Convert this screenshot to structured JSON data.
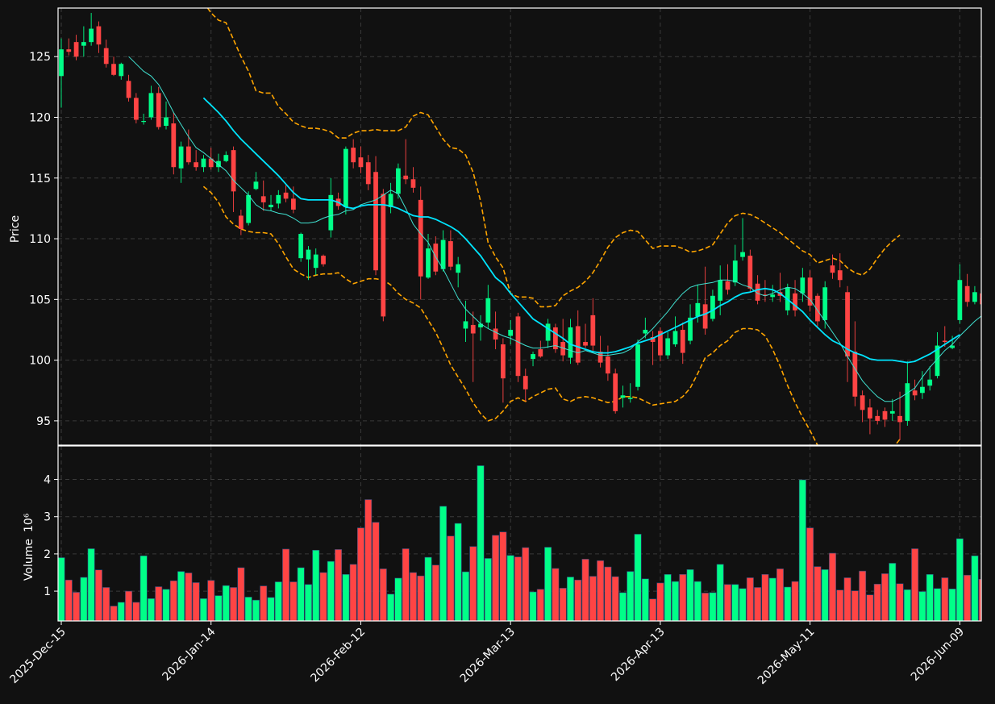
{
  "chart_data": {
    "type": "candlestick",
    "colors": {
      "background": "#111111",
      "up": "#00ff88",
      "down": "#ff4444",
      "ma_fast": "#40e0d0",
      "ma_slow": "#00e5ff",
      "bands": "#ffa500",
      "grid": "#3a3a3a",
      "text": "#ffffff"
    },
    "price_axis": {
      "label": "Price",
      "ylim": [
        93,
        129
      ],
      "ticks": [
        95,
        100,
        105,
        110,
        115,
        120,
        125
      ]
    },
    "volume_axis": {
      "label": "Volume",
      "exponent_label": "10⁶",
      "ylim": [
        0.2,
        4.9
      ],
      "ticks": [
        1,
        2,
        3,
        4
      ]
    },
    "x_ticks": [
      {
        "index": 0,
        "label": "2025-Dec-15"
      },
      {
        "index": 20,
        "label": "2026-Jan-14"
      },
      {
        "index": 40,
        "label": "2026-Feb-12"
      },
      {
        "index": 60,
        "label": "2026-Mar-13"
      },
      {
        "index": 80,
        "label": "2026-Apr-13"
      },
      {
        "index": 100,
        "label": "2026-May-11"
      },
      {
        "index": 120,
        "label": "2026-Jun-09"
      }
    ],
    "grid": true,
    "n_bars": 124,
    "close": [
      125.6,
      125.4,
      125.0,
      126.2,
      127.3,
      126.0,
      124.4,
      123.5,
      124.4,
      121.6,
      119.8,
      119.7,
      122.0,
      119.2,
      120.0,
      115.9,
      117.6,
      116.3,
      115.9,
      116.6,
      115.9,
      116.4,
      116.9,
      113.9,
      110.8,
      113.6,
      114.7,
      113.0,
      112.8,
      113.6,
      113.3,
      112.4,
      110.4,
      109.1,
      108.7,
      107.9,
      113.6,
      112.7,
      117.4,
      116.3,
      115.9,
      114.5,
      107.4,
      103.6,
      113.7,
      115.8,
      114.9,
      114.2,
      106.9,
      109.2,
      107.3,
      109.9,
      107.7,
      107.9,
      103.2,
      102.2,
      103.0,
      105.1,
      101.7,
      98.5,
      102.5,
      98.7,
      97.6,
      100.5,
      100.3,
      103.0,
      100.9,
      100.4,
      102.7,
      99.8,
      101.2,
      101.2,
      99.8,
      98.9,
      95.8,
      97.1,
      96.9,
      101.3,
      102.5,
      101.5,
      100.4,
      101.8,
      102.4,
      100.6,
      103.5,
      104.7,
      102.6,
      105.3,
      106.6,
      105.8,
      108.2,
      108.9,
      105.9,
      104.9,
      105.3,
      105.4,
      105.3,
      106.0,
      104.1,
      106.8,
      104.5,
      103.2,
      106.0,
      107.2,
      106.6,
      100.3,
      97.0,
      95.9,
      95.2,
      95.0,
      95.1,
      95.8,
      94.9,
      98.1,
      97.1,
      97.8,
      98.4,
      101.2,
      101.5,
      101.2,
      106.6,
      104.8,
      105.6,
      104.6
    ],
    "open": [
      123.4,
      125.6,
      126.2,
      125.9,
      126.2,
      127.5,
      125.7,
      124.4,
      123.4,
      123.0,
      121.6,
      119.7,
      120.0,
      122.0,
      119.3,
      119.5,
      115.8,
      117.6,
      116.3,
      115.9,
      116.6,
      115.9,
      116.4,
      117.3,
      111.9,
      111.3,
      114.1,
      113.5,
      112.6,
      112.9,
      113.8,
      113.3,
      108.4,
      108.3,
      107.6,
      108.6,
      110.7,
      113.3,
      112.6,
      117.5,
      116.7,
      116.3,
      115.5,
      113.7,
      112.6,
      113.7,
      115.2,
      114.9,
      113.2,
      106.8,
      109.6,
      107.5,
      109.8,
      107.2,
      102.6,
      102.9,
      102.7,
      103.1,
      102.6,
      101.3,
      102.0,
      103.6,
      98.7,
      100.1,
      100.9,
      101.6,
      102.7,
      101.5,
      100.2,
      102.8,
      101.5,
      103.7,
      100.7,
      100.3,
      98.9,
      96.9,
      96.8,
      97.8,
      102.2,
      101.9,
      102.4,
      100.4,
      101.3,
      102.5,
      101.6,
      103.6,
      104.6,
      103.4,
      104.9,
      106.5,
      106.4,
      108.5,
      108.6,
      106.3,
      105.4,
      105.2,
      105.6,
      104.1,
      105.5,
      105.5,
      106.8,
      105.3,
      103.3,
      107.8,
      107.4,
      105.6,
      100.7,
      97.1,
      96.1,
      95.4,
      95.8,
      95.6,
      95.4,
      95.0,
      97.5,
      97.3,
      97.9,
      98.7,
      101.6,
      101.0,
      103.3,
      106.1,
      104.8,
      105.5
    ],
    "high": [
      126.5,
      126.5,
      126.8,
      127.5,
      128.6,
      127.9,
      126.4,
      125.0,
      124.5,
      123.5,
      122.0,
      120.3,
      122.6,
      122.5,
      121.3,
      120.4,
      118.0,
      119.0,
      117.3,
      116.9,
      117.5,
      117.0,
      117.2,
      117.6,
      112.4,
      113.9,
      115.5,
      114.8,
      113.6,
      114.0,
      114.4,
      114.3,
      110.5,
      109.4,
      109.2,
      108.7,
      115.0,
      113.8,
      117.6,
      118.2,
      117.6,
      116.9,
      116.8,
      114.1,
      114.6,
      116.2,
      118.2,
      115.9,
      114.3,
      110.4,
      110.2,
      110.7,
      110.7,
      108.5,
      104.9,
      104.0,
      103.7,
      106.2,
      104.0,
      101.8,
      103.3,
      103.9,
      99.3,
      100.7,
      101.6,
      103.4,
      103.0,
      103.4,
      103.4,
      104.1,
      103.0,
      105.1,
      102.0,
      101.2,
      99.3,
      97.9,
      98.1,
      101.7,
      103.5,
      102.4,
      102.7,
      102.3,
      103.6,
      103.1,
      104.6,
      106.2,
      107.7,
      105.8,
      107.8,
      107.9,
      109.5,
      111.7,
      109.1,
      107.0,
      106.6,
      106.2,
      107.2,
      106.3,
      106.6,
      107.6,
      107.4,
      105.5,
      106.5,
      108.7,
      108.8,
      106.1,
      103.2,
      97.5,
      96.8,
      95.9,
      96.1,
      96.8,
      97.4,
      99.9,
      98.4,
      99.1,
      99.5,
      102.3,
      102.8,
      102.0,
      107.9,
      107.1,
      106.1,
      106.5
    ],
    "low": [
      120.8,
      125.1,
      124.7,
      125.0,
      125.9,
      125.3,
      124.1,
      123.4,
      123.1,
      121.3,
      119.5,
      119.4,
      119.8,
      119.0,
      119.0,
      115.3,
      114.6,
      116.1,
      115.6,
      115.5,
      115.7,
      115.5,
      116.3,
      112.2,
      110.3,
      111.1,
      114.0,
      112.3,
      112.3,
      112.5,
      113.0,
      112.1,
      108.1,
      106.6,
      107.0,
      107.7,
      110.1,
      112.4,
      112.0,
      115.8,
      115.4,
      114.0,
      107.0,
      103.2,
      112.1,
      113.3,
      114.5,
      113.8,
      105.0,
      106.7,
      107.0,
      107.3,
      107.4,
      106.0,
      101.5,
      98.2,
      101.6,
      102.6,
      100.9,
      96.5,
      101.3,
      98.2,
      96.6,
      99.5,
      100.2,
      101.0,
      100.6,
      99.9,
      99.7,
      99.6,
      101.0,
      100.6,
      99.4,
      98.3,
      95.6,
      96.1,
      96.5,
      97.5,
      101.8,
      99.6,
      99.9,
      100.1,
      101.1,
      99.7,
      101.3,
      103.1,
      102.1,
      103.2,
      103.7,
      105.4,
      106.1,
      108.2,
      105.6,
      104.6,
      104.8,
      104.8,
      104.8,
      103.7,
      103.6,
      104.8,
      104.0,
      102.8,
      102.6,
      106.7,
      106.0,
      98.2,
      96.2,
      94.9,
      93.9,
      94.7,
      94.5,
      95.0,
      93.4,
      94.6,
      96.7,
      96.8,
      97.5,
      98.5,
      101.1,
      100.9,
      103.0,
      104.4,
      104.6,
      103.9
    ],
    "ma_fast": [
      null,
      null,
      null,
      null,
      null,
      null,
      null,
      null,
      null,
      125.0,
      124.4,
      123.8,
      123.4,
      122.7,
      121.6,
      120.4,
      119.4,
      118.4,
      117.5,
      117.1,
      116.6,
      116.1,
      115.6,
      114.8,
      114.2,
      113.6,
      112.8,
      112.4,
      112.3,
      112.1,
      112.0,
      111.7,
      111.3,
      111.3,
      111.4,
      111.7,
      111.9,
      112.0,
      112.3,
      112.4,
      112.8,
      113.0,
      113.2,
      113.6,
      114.0,
      113.7,
      112.5,
      111.2,
      110.4,
      109.7,
      108.5,
      107.5,
      106.3,
      105.1,
      104.2,
      103.6,
      103.0,
      102.6,
      102.3,
      102.0,
      101.8,
      101.5,
      101.2,
      101.0,
      101.0,
      101.1,
      101.2,
      101.0,
      100.8,
      100.6,
      100.8,
      100.6,
      100.4,
      100.4,
      100.5,
      100.6,
      100.9,
      101.5,
      102.0,
      102.6,
      103.3,
      104.0,
      104.8,
      105.5,
      106.0,
      106.2,
      106.3,
      106.4,
      106.6,
      106.6,
      106.5,
      106.2,
      106.0,
      105.5,
      105.3,
      105.5,
      105.8,
      106.0,
      105.9,
      105.5,
      105.0,
      104.1,
      103.2,
      102.3,
      101.4,
      100.3,
      99.3,
      98.3,
      97.6,
      97.0,
      96.6,
      96.6,
      96.9,
      97.3,
      97.7,
      98.6,
      99.4,
      100.1,
      100.8,
      101.3,
      102.0,
      102.6,
      103.2,
      103.7
    ],
    "ma_slow": [
      null,
      null,
      null,
      null,
      null,
      null,
      null,
      null,
      null,
      null,
      null,
      null,
      null,
      null,
      null,
      null,
      null,
      null,
      null,
      121.6,
      121.0,
      120.4,
      119.7,
      118.9,
      118.2,
      117.6,
      117.0,
      116.4,
      115.8,
      115.2,
      114.5,
      113.8,
      113.3,
      113.2,
      113.2,
      113.2,
      113.2,
      113.0,
      112.6,
      112.5,
      112.7,
      112.8,
      112.8,
      112.8,
      112.7,
      112.5,
      112.2,
      111.9,
      111.8,
      111.8,
      111.6,
      111.3,
      111.0,
      110.6,
      110.0,
      109.3,
      108.6,
      107.7,
      106.8,
      106.3,
      105.5,
      104.8,
      104.1,
      103.4,
      103.0,
      102.6,
      102.2,
      101.8,
      101.3,
      101.1,
      100.9,
      100.7,
      100.6,
      100.6,
      100.7,
      100.9,
      101.1,
      101.4,
      101.6,
      101.8,
      102.1,
      102.4,
      102.7,
      103.0,
      103.3,
      103.6,
      103.8,
      104.1,
      104.5,
      104.8,
      105.2,
      105.5,
      105.6,
      105.8,
      105.9,
      105.8,
      105.5,
      105.0,
      104.5,
      104.0,
      103.3,
      102.7,
      102.1,
      101.6,
      101.3,
      100.9,
      100.6,
      100.4,
      100.1,
      100.0,
      100.0,
      100.0,
      99.9,
      99.8,
      99.9,
      100.2,
      100.5,
      100.9,
      101.3,
      101.7,
      102.1
    ],
    "band_upper": [
      null,
      null,
      null,
      null,
      null,
      null,
      null,
      null,
      null,
      null,
      null,
      null,
      null,
      null,
      null,
      null,
      null,
      null,
      null,
      129.5,
      128.6,
      128.0,
      127.8,
      126.4,
      125.0,
      123.8,
      122.2,
      122.0,
      122.0,
      120.9,
      120.3,
      119.6,
      119.3,
      119.1,
      119.1,
      119.0,
      118.8,
      118.3,
      118.3,
      118.7,
      118.9,
      118.9,
      119.0,
      118.9,
      118.9,
      118.9,
      119.2,
      120.1,
      120.4,
      120.2,
      119.2,
      118.2,
      117.5,
      117.4,
      116.9,
      115.5,
      113.1,
      109.7,
      108.5,
      107.6,
      105.5,
      105.2,
      105.2,
      105.1,
      104.4,
      104.4,
      104.5,
      105.3,
      105.7,
      106.0,
      106.5,
      107.2,
      108.2,
      109.3,
      110.1,
      110.5,
      110.7,
      110.6,
      109.9,
      109.2,
      109.4,
      109.4,
      109.4,
      109.2,
      108.9,
      109.0,
      109.2,
      109.5,
      110.4,
      111.3,
      111.9,
      112.1,
      112.0,
      111.7,
      111.3,
      110.9,
      110.5,
      110.0,
      109.5,
      109.0,
      108.7,
      108.0,
      108.2,
      108.4,
      108.2,
      107.6,
      107.2,
      107.0,
      107.5,
      108.4,
      109.2,
      109.8,
      110.3
    ],
    "band_lower": [
      null,
      null,
      null,
      null,
      null,
      null,
      null,
      null,
      null,
      null,
      null,
      null,
      null,
      null,
      null,
      null,
      null,
      null,
      null,
      114.3,
      113.8,
      113.0,
      111.8,
      111.2,
      110.8,
      110.6,
      110.5,
      110.5,
      110.4,
      109.6,
      108.5,
      107.5,
      107.1,
      106.8,
      107.0,
      107.1,
      107.1,
      107.2,
      106.7,
      106.3,
      106.5,
      106.7,
      106.7,
      106.6,
      106.2,
      105.5,
      105.0,
      104.7,
      104.3,
      103.3,
      102.3,
      101.0,
      99.6,
      98.6,
      97.6,
      96.5,
      95.6,
      95.0,
      95.2,
      95.8,
      96.6,
      96.9,
      96.6,
      97.0,
      97.3,
      97.6,
      97.7,
      96.8,
      96.6,
      96.9,
      97.0,
      96.9,
      96.7,
      96.5,
      96.6,
      97.0,
      97.0,
      96.9,
      96.6,
      96.3,
      96.4,
      96.5,
      96.6,
      97.0,
      97.7,
      98.9,
      100.2,
      100.6,
      101.2,
      101.6,
      102.3,
      102.6,
      102.6,
      102.5,
      102.0,
      100.9,
      99.5,
      97.9,
      96.5,
      95.3,
      94.2,
      93.0,
      92.0,
      90.6,
      89.1,
      88.3,
      88.7,
      89.2,
      89.9,
      90.7,
      91.7,
      92.7,
      93.5
    ]
  },
  "volume": [
    1.9,
    1.3,
    0.97,
    1.37,
    2.14,
    1.57,
    1.1,
    0.6,
    0.7,
    1.0,
    0.7,
    1.95,
    0.8,
    1.12,
    1.05,
    1.28,
    1.53,
    1.49,
    1.23,
    0.8,
    1.29,
    0.88,
    1.15,
    1.1,
    1.63,
    0.84,
    0.76,
    1.14,
    0.83,
    1.25,
    2.13,
    1.25,
    1.63,
    1.18,
    2.1,
    1.5,
    1.8,
    2.12,
    1.45,
    1.72,
    2.7,
    3.46,
    2.85,
    1.6,
    0.92,
    1.35,
    2.14,
    1.5,
    1.41,
    1.91,
    1.7,
    3.28,
    2.48,
    2.82,
    1.52,
    2.2,
    4.37,
    1.88,
    2.5,
    2.59,
    1.96,
    1.92,
    2.17,
    0.98,
    1.05,
    2.18,
    1.61,
    1.08,
    1.38,
    1.3,
    1.86,
    1.4,
    1.82,
    1.65,
    1.39,
    0.96,
    1.53,
    2.53,
    1.33,
    0.79,
    1.22,
    1.45,
    1.26,
    1.45,
    1.58,
    1.26,
    0.95,
    0.96,
    1.72,
    1.18,
    1.18,
    1.07,
    1.36,
    1.1,
    1.45,
    1.35,
    1.6,
    1.11,
    1.26,
    3.99,
    2.7,
    1.66,
    1.58,
    2.02,
    1.03,
    1.36,
    1.01,
    1.54,
    0.9,
    1.19,
    1.47,
    1.75,
    1.2,
    1.04,
    2.14,
    0.99,
    1.45,
    1.07,
    1.36,
    1.06,
    2.41,
    1.43,
    1.95,
    1.32
  ]
}
